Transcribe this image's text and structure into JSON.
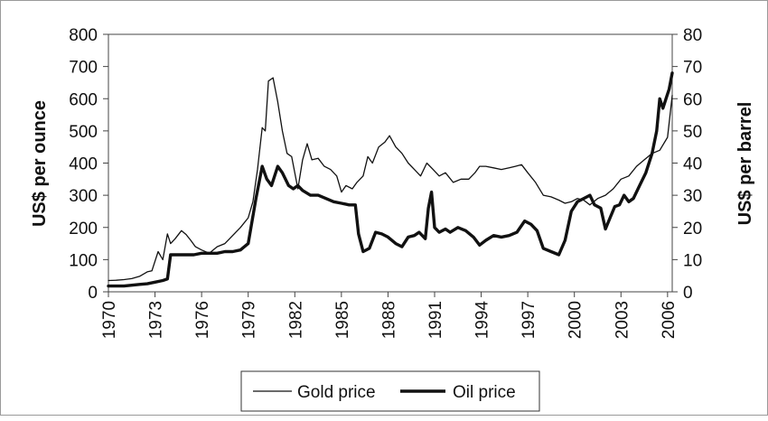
{
  "chart_data": {
    "type": "line",
    "title": "",
    "xlabel": "",
    "ylabel_left": "US$ per ounce",
    "ylabel_right": "US$ per barrel",
    "xlim": [
      1970,
      2006.3
    ],
    "ylim_left": [
      0,
      800
    ],
    "ylim_right": [
      0,
      80
    ],
    "x_ticks": [
      1970,
      1973,
      1976,
      1979,
      1982,
      1985,
      1988,
      1991,
      1994,
      1997,
      2000,
      2003,
      2006
    ],
    "x_tick_labels": [
      "1970",
      "1973",
      "1976",
      "1979",
      "1982",
      "1985",
      "1988",
      "1991",
      "1994",
      "1997",
      "2000",
      "2003",
      "2006"
    ],
    "y_left_ticks": [
      0,
      100,
      200,
      300,
      400,
      500,
      600,
      700,
      800
    ],
    "y_left_tick_labels": [
      "0",
      "100",
      "200",
      "300",
      "400",
      "500",
      "600",
      "700",
      "800"
    ],
    "y_right_ticks": [
      0,
      10,
      20,
      30,
      40,
      50,
      60,
      70,
      80
    ],
    "y_right_tick_labels": [
      "0",
      "10",
      "20",
      "30",
      "40",
      "50",
      "60",
      "70",
      "80"
    ],
    "grid": false,
    "legend_position": "bottom-center",
    "series": [
      {
        "name": "Gold price",
        "axis": "left",
        "style": "thin",
        "x": [
          1970.0,
          1970.5,
          1971.0,
          1971.5,
          1972.0,
          1972.5,
          1972.8,
          1973.2,
          1973.5,
          1973.8,
          1974.0,
          1974.3,
          1974.7,
          1975.0,
          1975.3,
          1975.6,
          1976.0,
          1976.5,
          1977.0,
          1977.5,
          1978.0,
          1978.5,
          1979.0,
          1979.3,
          1979.6,
          1979.9,
          1980.1,
          1980.3,
          1980.6,
          1980.9,
          1981.2,
          1981.5,
          1981.8,
          1982.2,
          1982.5,
          1982.8,
          1983.1,
          1983.5,
          1983.9,
          1984.3,
          1984.7,
          1985.0,
          1985.3,
          1985.7,
          1986.0,
          1986.4,
          1986.7,
          1987.0,
          1987.4,
          1987.8,
          1988.1,
          1988.5,
          1988.9,
          1989.3,
          1989.7,
          1990.1,
          1990.5,
          1990.9,
          1991.3,
          1991.7,
          1992.2,
          1992.7,
          1993.2,
          1993.6,
          1993.9,
          1994.3,
          1994.8,
          1995.3,
          1995.8,
          1996.2,
          1996.6,
          1997.0,
          1997.5,
          1998.0,
          1998.5,
          1999.0,
          1999.4,
          1999.8,
          2000.2,
          2000.6,
          2001.0,
          2001.5,
          2002.0,
          2002.5,
          2003.0,
          2003.5,
          2004.0,
          2004.5,
          2005.0,
          2005.5,
          2006.0,
          2006.3
        ],
        "y": [
          35,
          36,
          38,
          41,
          48,
          62,
          65,
          125,
          100,
          180,
          150,
          165,
          190,
          178,
          160,
          140,
          130,
          120,
          140,
          150,
          175,
          200,
          230,
          280,
          380,
          510,
          500,
          655,
          665,
          590,
          500,
          430,
          420,
          320,
          410,
          460,
          410,
          415,
          390,
          380,
          360,
          310,
          330,
          320,
          340,
          360,
          420,
          400,
          450,
          465,
          485,
          450,
          430,
          400,
          380,
          360,
          400,
          380,
          360,
          370,
          340,
          350,
          350,
          370,
          390,
          390,
          385,
          380,
          385,
          390,
          395,
          370,
          340,
          300,
          295,
          285,
          275,
          280,
          290,
          285,
          270,
          290,
          300,
          320,
          350,
          360,
          390,
          410,
          430,
          440,
          480,
          610
        ]
      },
      {
        "name": "Oil price",
        "axis": "right",
        "style": "thick",
        "x": [
          1970.0,
          1971.0,
          1972.0,
          1972.5,
          1973.0,
          1973.5,
          1973.8,
          1974.0,
          1974.5,
          1975.0,
          1975.5,
          1976.0,
          1976.5,
          1977.0,
          1977.5,
          1978.0,
          1978.5,
          1979.0,
          1979.5,
          1979.9,
          1980.2,
          1980.5,
          1980.9,
          1981.2,
          1981.6,
          1981.9,
          1982.2,
          1982.5,
          1983.0,
          1983.5,
          1984.0,
          1984.5,
          1985.0,
          1985.5,
          1985.9,
          1986.1,
          1986.4,
          1986.8,
          1987.2,
          1987.6,
          1988.0,
          1988.5,
          1988.9,
          1989.3,
          1989.7,
          1990.0,
          1990.4,
          1990.6,
          1990.8,
          1991.0,
          1991.3,
          1991.7,
          1992.0,
          1992.5,
          1993.0,
          1993.5,
          1993.9,
          1994.3,
          1994.8,
          1995.3,
          1995.8,
          1996.3,
          1996.8,
          1997.2,
          1997.6,
          1998.0,
          1998.5,
          1999.0,
          1999.4,
          1999.8,
          2000.2,
          2000.6,
          2001.0,
          2001.3,
          2001.7,
          2002.0,
          2002.3,
          2002.6,
          2002.9,
          2003.2,
          2003.5,
          2003.8,
          2004.2,
          2004.6,
          2005.0,
          2005.3,
          2005.5,
          2005.7,
          2005.9,
          2006.1,
          2006.3
        ],
        "y": [
          1.8,
          1.8,
          2.3,
          2.5,
          3.0,
          3.5,
          4.0,
          11.5,
          11.5,
          11.5,
          11.5,
          12.0,
          12.0,
          12.0,
          12.5,
          12.5,
          13.0,
          15.0,
          29.0,
          39.0,
          35.0,
          33.0,
          39.0,
          37.0,
          33.0,
          32.0,
          33.0,
          31.5,
          30.0,
          30.0,
          29.0,
          28.0,
          27.5,
          27.0,
          27.0,
          18.0,
          12.5,
          13.5,
          18.5,
          18.0,
          17.0,
          15.0,
          14.0,
          17.0,
          17.5,
          18.5,
          16.5,
          26.0,
          31.0,
          20.0,
          18.5,
          19.5,
          18.5,
          20.0,
          19.0,
          17.0,
          14.5,
          16.0,
          17.5,
          17.0,
          17.5,
          18.5,
          22.0,
          21.0,
          19.0,
          13.5,
          12.5,
          11.5,
          16.0,
          25.0,
          28.0,
          29.0,
          30.0,
          27.0,
          26.0,
          19.5,
          23.0,
          26.5,
          27.0,
          30.0,
          28.0,
          29.0,
          33.0,
          37.0,
          43.0,
          50.0,
          60.0,
          57.0,
          60.0,
          63.0,
          68.0
        ]
      }
    ]
  }
}
